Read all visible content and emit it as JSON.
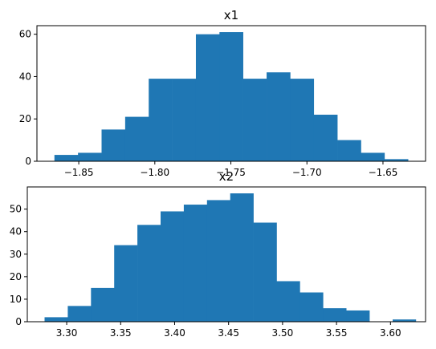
{
  "chart_data": [
    {
      "type": "bar",
      "title": "x1",
      "xlabel": "",
      "ylabel": "",
      "color": "#1f77b4",
      "bins": [
        {
          "x0": -1.866,
          "x1": -1.8505,
          "count": 3
        },
        {
          "x0": -1.8505,
          "x1": -1.835,
          "count": 4
        },
        {
          "x0": -1.835,
          "x1": -1.8195,
          "count": 15
        },
        {
          "x0": -1.8195,
          "x1": -1.804,
          "count": 21
        },
        {
          "x0": -1.804,
          "x1": -1.7885,
          "count": 39
        },
        {
          "x0": -1.7885,
          "x1": -1.773,
          "count": 39
        },
        {
          "x0": -1.773,
          "x1": -1.7575,
          "count": 60
        },
        {
          "x0": -1.7575,
          "x1": -1.742,
          "count": 61
        },
        {
          "x0": -1.742,
          "x1": -1.7265,
          "count": 39
        },
        {
          "x0": -1.7265,
          "x1": -1.711,
          "count": 42
        },
        {
          "x0": -1.711,
          "x1": -1.6955,
          "count": 39
        },
        {
          "x0": -1.6955,
          "x1": -1.68,
          "count": 22
        },
        {
          "x0": -1.68,
          "x1": -1.6645,
          "count": 10
        },
        {
          "x0": -1.6645,
          "x1": -1.649,
          "count": 4
        },
        {
          "x0": -1.649,
          "x1": -1.6335,
          "count": 1
        }
      ],
      "xlim": [
        -1.8775,
        -1.622
      ],
      "ylim": [
        0,
        64.05
      ],
      "xticks": [
        -1.85,
        -1.8,
        -1.75,
        -1.7,
        -1.65
      ],
      "xtick_labels": [
        "−1.85",
        "−1.80",
        "−1.75",
        "−1.70",
        "−1.65"
      ],
      "yticks": [
        0,
        20,
        40,
        60
      ],
      "ytick_labels": [
        "0",
        "20",
        "40",
        "60"
      ],
      "grid": false
    },
    {
      "type": "bar",
      "title": "x2",
      "xlabel": "",
      "ylabel": "",
      "color": "#1f77b4",
      "bins": [
        {
          "x0": 3.2795,
          "x1": 3.301,
          "count": 2
        },
        {
          "x0": 3.301,
          "x1": 3.3225,
          "count": 7
        },
        {
          "x0": 3.3225,
          "x1": 3.344,
          "count": 15
        },
        {
          "x0": 3.344,
          "x1": 3.3655,
          "count": 34
        },
        {
          "x0": 3.3655,
          "x1": 3.387,
          "count": 43
        },
        {
          "x0": 3.387,
          "x1": 3.4085,
          "count": 49
        },
        {
          "x0": 3.4085,
          "x1": 3.43,
          "count": 52
        },
        {
          "x0": 3.43,
          "x1": 3.4515,
          "count": 54
        },
        {
          "x0": 3.4515,
          "x1": 3.473,
          "count": 57
        },
        {
          "x0": 3.473,
          "x1": 3.4945,
          "count": 44
        },
        {
          "x0": 3.4945,
          "x1": 3.516,
          "count": 18
        },
        {
          "x0": 3.516,
          "x1": 3.5375,
          "count": 13
        },
        {
          "x0": 3.5375,
          "x1": 3.559,
          "count": 6
        },
        {
          "x0": 3.559,
          "x1": 3.5805,
          "count": 5
        },
        {
          "x0": 3.5805,
          "x1": 3.602,
          "count": 0
        },
        {
          "x0": 3.602,
          "x1": 3.6235,
          "count": 1
        }
      ],
      "xlim": [
        3.2635,
        3.6325
      ],
      "ylim": [
        0,
        59.85
      ],
      "xticks": [
        3.3,
        3.35,
        3.4,
        3.45,
        3.5,
        3.55,
        3.6
      ],
      "xtick_labels": [
        "3.30",
        "3.35",
        "3.40",
        "3.45",
        "3.50",
        "3.55",
        "3.60"
      ],
      "yticks": [
        0,
        10,
        20,
        30,
        40,
        50
      ],
      "ytick_labels": [
        "0",
        "10",
        "20",
        "30",
        "40",
        "50"
      ],
      "grid": false
    }
  ]
}
